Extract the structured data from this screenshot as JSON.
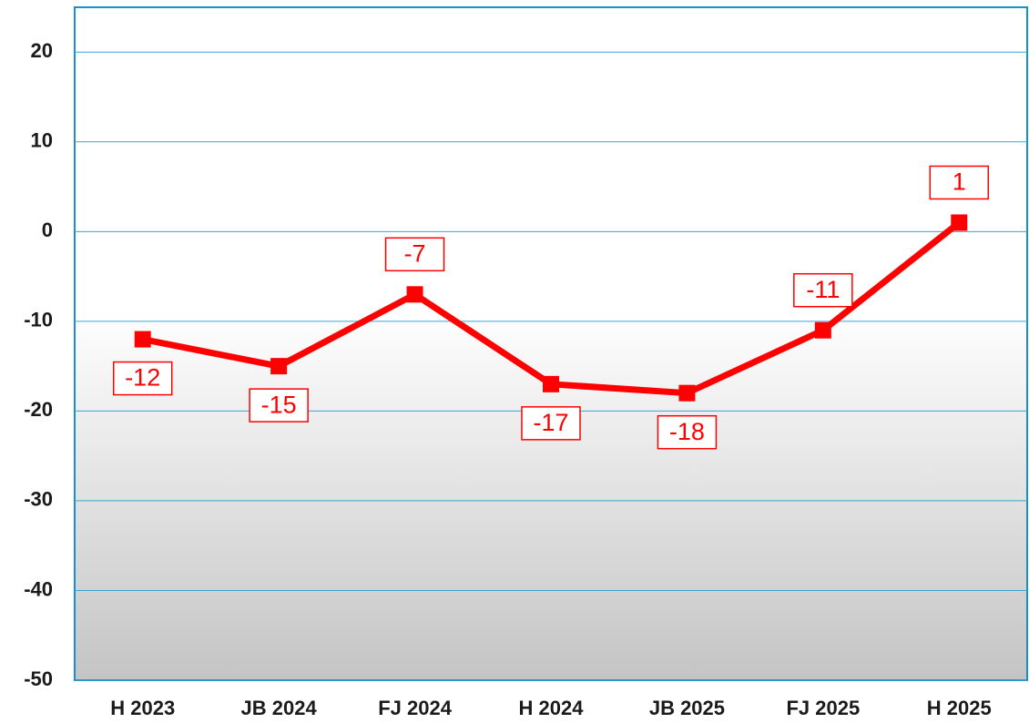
{
  "chart_data": {
    "type": "line",
    "categories": [
      "H 2023",
      "JB 2024",
      "FJ 2024",
      "H 2024",
      "JB 2025",
      "FJ 2025",
      "H 2025"
    ],
    "series": [
      {
        "color": "#ff0000",
        "values": [
          -12,
          -15,
          -7,
          -17,
          -18,
          -11,
          1
        ]
      }
    ],
    "ylim": [
      -50,
      25
    ],
    "yticks": [
      -50,
      -40,
      -30,
      -20,
      -10,
      0,
      10,
      20
    ],
    "grid": true
  }
}
